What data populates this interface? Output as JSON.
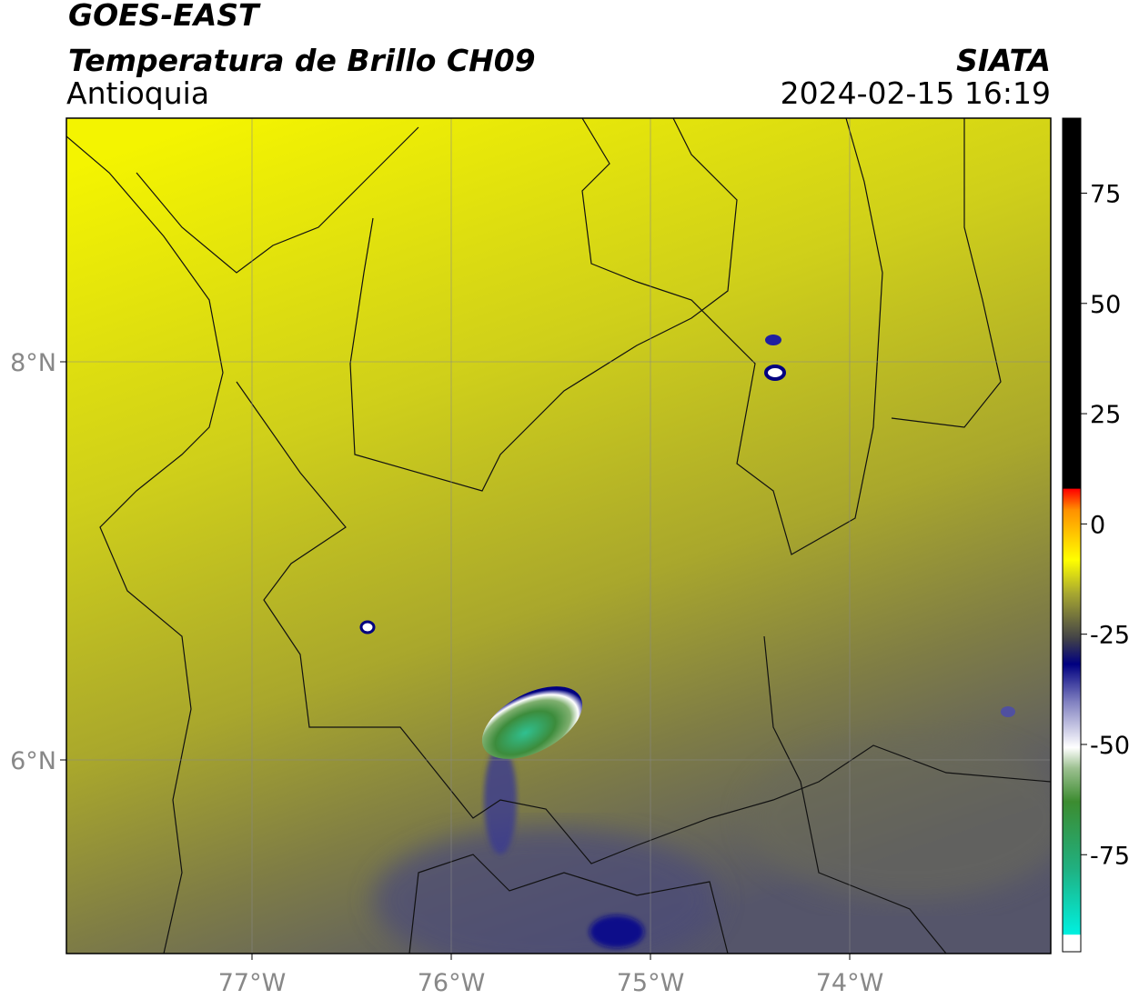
{
  "header": {
    "title": "GOES-EAST",
    "subtitle": "Temperatura de Brillo CH09",
    "region": "Antioquia",
    "source": "SIATA",
    "datetime": "2024-02-15 16:19"
  },
  "map": {
    "lon_ticks": [
      "77°W",
      "76°W",
      "75°W",
      "74°W"
    ],
    "lat_ticks": [
      "8°N",
      "6°N"
    ]
  },
  "colorbar": {
    "lim": [
      -97,
      92
    ],
    "ticks": [
      75,
      50,
      25,
      0,
      -25,
      -50,
      -75
    ]
  }
}
